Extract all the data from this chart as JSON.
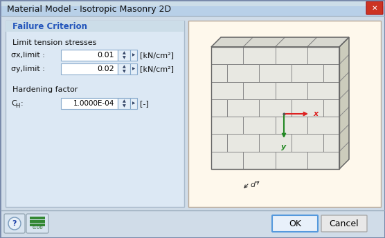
{
  "title": "Material Model - Isotropic Masonry 2D",
  "bg_outer": "#c8dce8",
  "bg_dialog": "#d0dce8",
  "titlebar_bg": "#b8ccd8",
  "titlebar_gradient_top": "#c8dce8",
  "close_btn_color": "#cc2222",
  "panel_bg": "#dce8f4",
  "panel_border": "#a0b8cc",
  "image_panel_bg": "#fef8ec",
  "group_title": "Failure Criterion",
  "group_title_color": "#2255bb",
  "section1_label": "Limit tension stresses",
  "row1_label": "σx,limit :",
  "row1_value": "0.01",
  "row1_unit": "[kN/cm²]",
  "row2_label": "σy,limit :",
  "row2_value": "0.02",
  "row2_unit": "[kN/cm²]",
  "section2_label": "Hardening factor",
  "row3_label": "CH :",
  "row3_value": "1.0000E-04",
  "row3_unit": "[-]",
  "ok_label": "OK",
  "cancel_label": "Cancel",
  "brick_face_color": "#e8e8e2",
  "brick_top_color": "#d8d8d0",
  "brick_side_color": "#ccccbc",
  "brick_edge_color": "#888888",
  "mortar_color": "#999990",
  "axis_x_color": "#dd2222",
  "axis_y_color": "#228822"
}
